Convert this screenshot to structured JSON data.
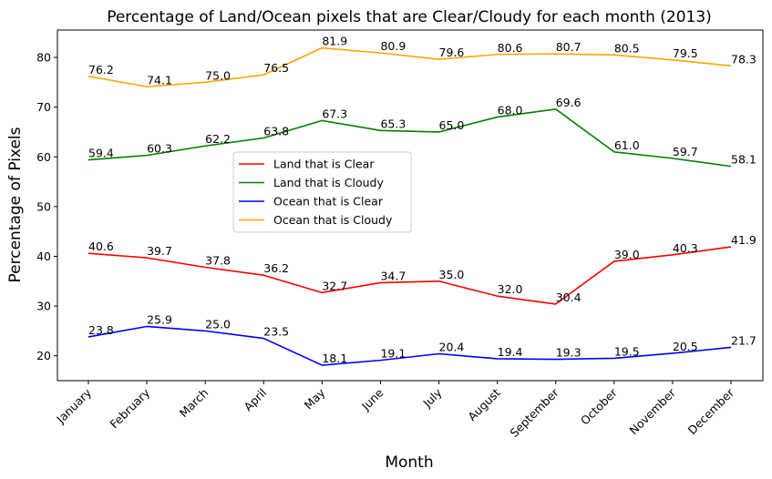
{
  "chart_data": {
    "type": "line",
    "title": "Percentage of Land/Ocean pixels that are Clear/Cloudy for each month (2013)",
    "xlabel": "Month",
    "ylabel": "Percentage of Pixels",
    "categories": [
      "January",
      "February",
      "March",
      "April",
      "May",
      "June",
      "July",
      "August",
      "September",
      "October",
      "November",
      "December"
    ],
    "ylim": [
      15,
      85.5
    ],
    "yticks": [
      20,
      30,
      40,
      50,
      60,
      70,
      80
    ],
    "grid": false,
    "legend_position": "center-left",
    "series": [
      {
        "name": "Land that is Clear",
        "color": "#ff0000",
        "values": [
          40.6,
          39.7,
          37.8,
          36.2,
          32.7,
          34.7,
          35.0,
          32.0,
          30.4,
          39.0,
          40.3,
          41.9
        ]
      },
      {
        "name": "Land that is Cloudy",
        "color": "#008000",
        "values": [
          59.4,
          60.3,
          62.2,
          63.8,
          67.3,
          65.3,
          65.0,
          68.0,
          69.6,
          61.0,
          59.7,
          58.1
        ]
      },
      {
        "name": "Ocean that is Clear",
        "color": "#0000ff",
        "values": [
          23.8,
          25.9,
          25.0,
          23.5,
          18.1,
          19.1,
          20.4,
          19.4,
          19.3,
          19.5,
          20.5,
          21.7
        ]
      },
      {
        "name": "Ocean that is Cloudy",
        "color": "#ffa500",
        "values": [
          76.2,
          74.1,
          75.0,
          76.5,
          81.9,
          80.9,
          79.6,
          80.6,
          80.7,
          80.5,
          79.5,
          78.3
        ]
      }
    ]
  }
}
